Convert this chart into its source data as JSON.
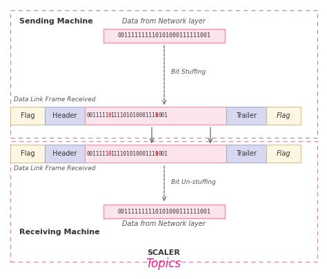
{
  "bg_color": "#ffffff",
  "sending_label": "Sending Machine",
  "receiving_label": "Receiving Machine",
  "data_from_network": "Data from Network layer",
  "data_link_frame": "Data Link Frame Received",
  "bit_stuffing_label": "Bit Stuffing",
  "bit_unstuffing_label": "Bit Un-stuffing",
  "original_data": "001111111110101000111111001",
  "flag_color": "#fdf6e3",
  "header_color": "#d8d8f0",
  "data_color": "#fce4ec",
  "trailer_color": "#d8d8f0",
  "dashed_box_top_color": "#999999",
  "dashed_box_bottom_color": "#e87aaa",
  "arrow_color": "#555555",
  "text_color": "#333333",
  "label_color": "#555555",
  "red_bit_color": "#e53935",
  "scaler_text": "SCALER",
  "topics_text": "Topics",
  "topics_color": "#e91e8c",
  "frame_border_color": "#bbbbbb",
  "data_border_color": "#f48fb1",
  "flag_border_color": "#d4c090",
  "header_border_color": "#aaaacc"
}
